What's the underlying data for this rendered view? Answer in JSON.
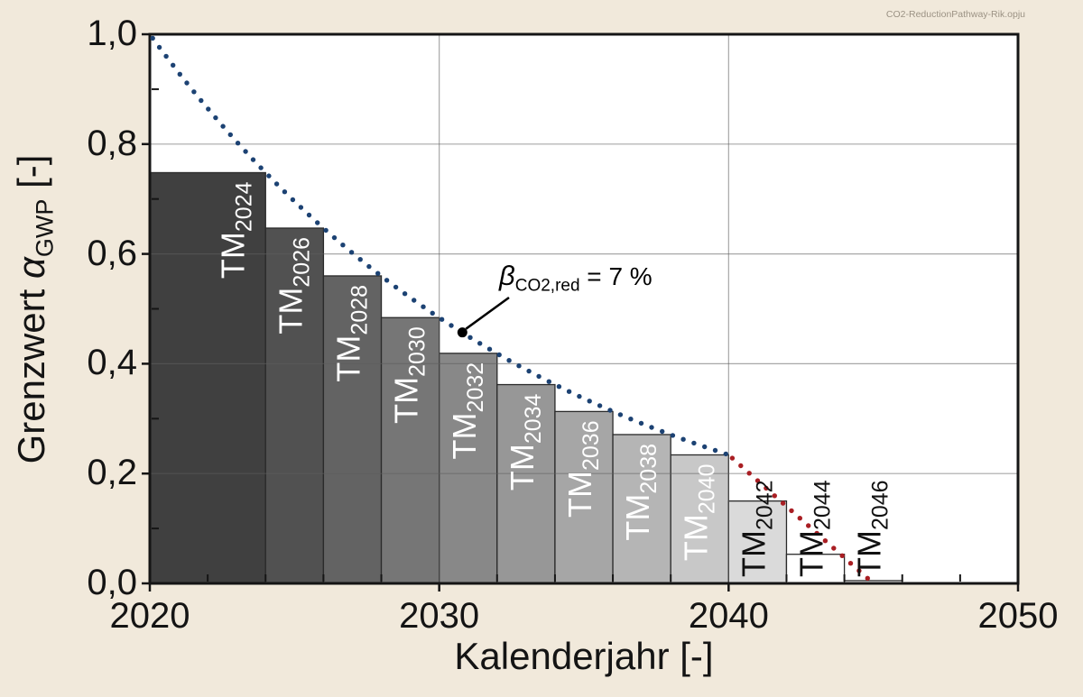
{
  "watermark": "CO2-ReductionPathway-Rik.opju",
  "colors": {
    "background": "#f1e9db",
    "plot_background": "#ffffff",
    "frame": "#151515",
    "grid": "#5f5f5f",
    "blue_curve": "#1c4273",
    "red_curve": "#a91e23",
    "annotation_marker": "#000000"
  },
  "x_axis": {
    "title": "Kalenderjahr [-]",
    "tick_labels": [
      "2020",
      "2030",
      "2040",
      "2050"
    ],
    "tick_values": [
      2020,
      2030,
      2040,
      2050
    ],
    "minor_step": 2,
    "range": [
      2020,
      2050
    ]
  },
  "y_axis": {
    "title_prefix": "Grenzwert ",
    "title_symbol": "α",
    "title_subscript": "GWP",
    "title_suffix": " [-]",
    "tick_labels": [
      "0,0",
      "0,2",
      "0,4",
      "0,6",
      "0,8",
      "1,0"
    ],
    "tick_values": [
      0,
      0.2,
      0.4,
      0.6,
      0.8,
      1.0
    ],
    "minor_values": [
      0.1,
      0.3,
      0.5,
      0.7,
      0.9
    ],
    "range": [
      0,
      1
    ]
  },
  "annotation": {
    "symbol": "β",
    "subscript": "CO2,red",
    "text": " = 7 %",
    "dot_year": 2030.8,
    "dot_value": 0.457
  },
  "chart_data": {
    "type": "bar",
    "title": "",
    "xlabel": "Kalenderjahr [-]",
    "ylabel": "Grenzwert alpha_GWP [-]",
    "xlim": [
      2020,
      2050
    ],
    "ylim": [
      0,
      1
    ],
    "grid": true,
    "bar_label_prefix": "TM",
    "bars": [
      {
        "label": "TM",
        "year": 2024,
        "span": [
          2020,
          2024
        ],
        "value": 0.748,
        "fill": "#404040",
        "label_color": "#ffffff"
      },
      {
        "label": "TM",
        "year": 2026,
        "span": [
          2024,
          2026
        ],
        "value": 0.647,
        "fill": "#515151",
        "label_color": "#ffffff"
      },
      {
        "label": "TM",
        "year": 2028,
        "span": [
          2026,
          2028
        ],
        "value": 0.56,
        "fill": "#636363",
        "label_color": "#ffffff"
      },
      {
        "label": "TM",
        "year": 2030,
        "span": [
          2028,
          2030
        ],
        "value": 0.484,
        "fill": "#767676",
        "label_color": "#ffffff"
      },
      {
        "label": "TM",
        "year": 2032,
        "span": [
          2030,
          2032
        ],
        "value": 0.419,
        "fill": "#888888",
        "label_color": "#ffffff"
      },
      {
        "label": "TM",
        "year": 2034,
        "span": [
          2032,
          2034
        ],
        "value": 0.362,
        "fill": "#979797",
        "label_color": "#ffffff"
      },
      {
        "label": "TM",
        "year": 2036,
        "span": [
          2034,
          2036
        ],
        "value": 0.313,
        "fill": "#a6a6a6",
        "label_color": "#ffffff"
      },
      {
        "label": "TM",
        "year": 2038,
        "span": [
          2036,
          2038
        ],
        "value": 0.271,
        "fill": "#b5b5b5",
        "label_color": "#ffffff"
      },
      {
        "label": "TM",
        "year": 2040,
        "span": [
          2038,
          2040
        ],
        "value": 0.234,
        "fill": "#c8c8c8",
        "label_color": "#ffffff"
      },
      {
        "label": "TM",
        "year": 2042,
        "span": [
          2040,
          2042
        ],
        "value": 0.15,
        "fill": "#dadada",
        "label_color": "#111111"
      },
      {
        "label": "TM",
        "year": 2044,
        "span": [
          2042,
          2044
        ],
        "value": 0.053,
        "fill": "#ffffff",
        "label_color": "#111111"
      },
      {
        "label": "TM",
        "year": 2046,
        "span": [
          2044,
          2046
        ],
        "value": 0.005,
        "fill": "#ffffff",
        "label_color": "#111111"
      }
    ],
    "curves": [
      {
        "name": "exponential-reduction-pathway",
        "style": "dotted",
        "color": "#1c4273",
        "type": "exponential",
        "start_year": 2020,
        "end_year": 2040,
        "start_value": 1.0,
        "annual_reduction": 0.07
      },
      {
        "name": "linear-tail",
        "style": "dotted",
        "color": "#a91e23",
        "type": "linear",
        "start_year": 2040,
        "end_year": 2045,
        "start_value": 0.234,
        "end_value": 0.0
      }
    ],
    "legend": null
  }
}
